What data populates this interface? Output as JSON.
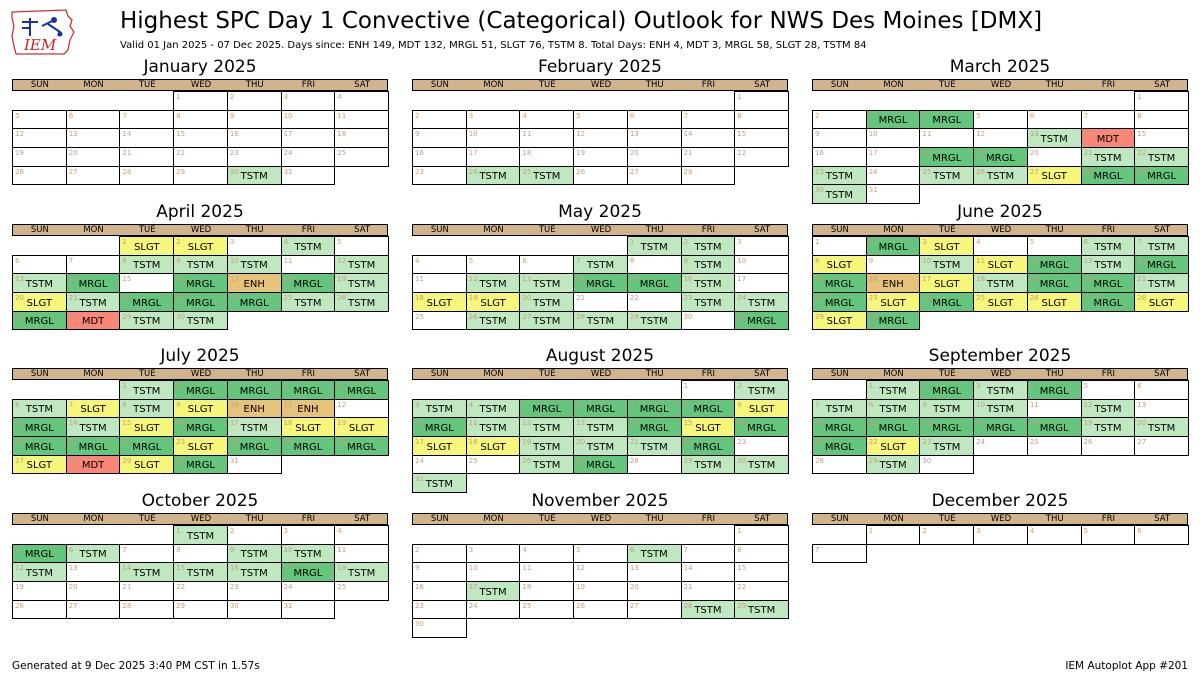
{
  "header": {
    "logo_text": "IEM",
    "title": "Highest SPC Day 1 Convective (Categorical) Outlook for NWS Des Moines [DMX]",
    "subtitle": "Valid 01 Jan 2025 - 07 Dec 2025. Days since: ENH 149, MDT 132, MRGL 51, SLGT 76, TSTM 8. Total Days: ENH 4, MDT 3, MRGL 58, SLGT 28, TSTM 84"
  },
  "footer": {
    "generated": "Generated at 9 Dec 2025 3:40 PM CST in 1.57s",
    "app": "IEM Autoplot App #201"
  },
  "weekdays": [
    "SUN",
    "MON",
    "TUE",
    "WED",
    "THU",
    "FRI",
    "SAT"
  ],
  "colors": {
    "TSTM": "#c0e8c0",
    "MRGL": "#66c57d",
    "SLGT": "#f6f67b",
    "ENH": "#e6c27a",
    "MDT": "#f88778",
    "grid": "#000000",
    "weekday_bar": "#d2b48c",
    "day_number": "#c2a078"
  },
  "months": [
    {
      "name": "January 2025",
      "start_dow": 3,
      "days": 31,
      "outlooks": {
        "30": "TSTM"
      }
    },
    {
      "name": "February 2025",
      "start_dow": 6,
      "days": 28,
      "outlooks": {
        "24": "TSTM",
        "25": "TSTM"
      }
    },
    {
      "name": "March 2025",
      "start_dow": 6,
      "days": 31,
      "outlooks": {
        "3": "MRGL",
        "4": "MRGL",
        "13": "TSTM",
        "14": "MDT",
        "18": "MRGL",
        "19": "MRGL",
        "21": "TSTM",
        "22": "TSTM",
        "23": "TSTM",
        "25": "TSTM",
        "26": "TSTM",
        "27": "SLGT",
        "28": "MRGL",
        "29": "MRGL",
        "30": "TSTM"
      }
    },
    {
      "name": "April 2025",
      "start_dow": 2,
      "days": 30,
      "outlooks": {
        "1": "SLGT",
        "2": "SLGT",
        "4": "TSTM",
        "8": "TSTM",
        "9": "TSTM",
        "10": "TSTM",
        "12": "TSTM",
        "13": "TSTM",
        "14": "MRGL",
        "16": "MRGL",
        "17": "ENH",
        "18": "MRGL",
        "19": "TSTM",
        "20": "SLGT",
        "21": "TSTM",
        "22": "MRGL",
        "23": "MRGL",
        "24": "MRGL",
        "25": "TSTM",
        "26": "TSTM",
        "27": "MRGL",
        "28": "MDT",
        "29": "TSTM",
        "30": "TSTM"
      }
    },
    {
      "name": "May 2025",
      "start_dow": 4,
      "days": 31,
      "outlooks": {
        "1": "TSTM",
        "2": "TSTM",
        "7": "TSTM",
        "9": "TSTM",
        "12": "TSTM",
        "13": "TSTM",
        "14": "MRGL",
        "15": "MRGL",
        "16": "TSTM",
        "18": "SLGT",
        "19": "SLGT",
        "20": "TSTM",
        "23": "TSTM",
        "24": "TSTM",
        "26": "TSTM",
        "27": "TSTM",
        "28": "TSTM",
        "29": "TSTM",
        "31": "MRGL"
      }
    },
    {
      "name": "June 2025",
      "start_dow": 0,
      "days": 30,
      "outlooks": {
        "2": "MRGL",
        "3": "SLGT",
        "6": "TSTM",
        "7": "TSTM",
        "8": "SLGT",
        "10": "TSTM",
        "11": "SLGT",
        "12": "MRGL",
        "13": "TSTM",
        "14": "MRGL",
        "15": "MRGL",
        "16": "ENH",
        "17": "SLGT",
        "18": "TSTM",
        "19": "MRGL",
        "20": "MRGL",
        "21": "TSTM",
        "22": "MRGL",
        "23": "SLGT",
        "24": "MRGL",
        "25": "SLGT",
        "26": "SLGT",
        "27": "MRGL",
        "28": "SLGT",
        "29": "SLGT",
        "30": "MRGL"
      }
    },
    {
      "name": "July 2025",
      "start_dow": 2,
      "days": 31,
      "outlooks": {
        "1": "TSTM",
        "2": "MRGL",
        "3": "MRGL",
        "4": "MRGL",
        "5": "MRGL",
        "6": "TSTM",
        "7": "SLGT",
        "8": "TSTM",
        "9": "SLGT",
        "10": "ENH",
        "11": "ENH",
        "13": "MRGL",
        "14": "TSTM",
        "15": "SLGT",
        "16": "MRGL",
        "17": "TSTM",
        "18": "SLGT",
        "19": "SLGT",
        "20": "MRGL",
        "21": "MRGL",
        "22": "MRGL",
        "23": "SLGT",
        "24": "MRGL",
        "25": "MRGL",
        "26": "MRGL",
        "27": "SLGT",
        "28": "MDT",
        "29": "SLGT",
        "30": "MRGL"
      }
    },
    {
      "name": "August 2025",
      "start_dow": 5,
      "days": 31,
      "outlooks": {
        "2": "TSTM",
        "3": "TSTM",
        "4": "TSTM",
        "5": "MRGL",
        "6": "MRGL",
        "7": "MRGL",
        "8": "MRGL",
        "9": "SLGT",
        "10": "MRGL",
        "11": "TSTM",
        "12": "TSTM",
        "13": "TSTM",
        "14": "MRGL",
        "15": "SLGT",
        "16": "MRGL",
        "17": "SLGT",
        "18": "SLGT",
        "19": "TSTM",
        "20": "TSTM",
        "21": "TSTM",
        "22": "MRGL",
        "26": "TSTM",
        "27": "MRGL",
        "29": "TSTM",
        "30": "TSTM",
        "31": "TSTM"
      }
    },
    {
      "name": "September 2025",
      "start_dow": 1,
      "days": 30,
      "outlooks": {
        "1": "TSTM",
        "2": "MRGL",
        "3": "TSTM",
        "4": "MRGL",
        "7": "TSTM",
        "8": "TSTM",
        "9": "TSTM",
        "10": "TSTM",
        "12": "TSTM",
        "14": "MRGL",
        "15": "MRGL",
        "16": "MRGL",
        "17": "MRGL",
        "18": "MRGL",
        "19": "TSTM",
        "20": "TSTM",
        "21": "MRGL",
        "22": "SLGT",
        "23": "TSTM",
        "29": "TSTM"
      }
    },
    {
      "name": "October 2025",
      "start_dow": 3,
      "days": 31,
      "outlooks": {
        "1": "TSTM",
        "5": "MRGL",
        "6": "TSTM",
        "9": "TSTM",
        "10": "TSTM",
        "12": "TSTM",
        "14": "TSTM",
        "15": "TSTM",
        "16": "TSTM",
        "17": "MRGL",
        "18": "TSTM"
      }
    },
    {
      "name": "November 2025",
      "start_dow": 6,
      "days": 30,
      "outlooks": {
        "6": "TSTM",
        "17": "TSTM",
        "28": "TSTM",
        "29": "TSTM"
      }
    },
    {
      "name": "December 2025",
      "start_dow": 1,
      "days": 7,
      "outlooks": {}
    }
  ]
}
